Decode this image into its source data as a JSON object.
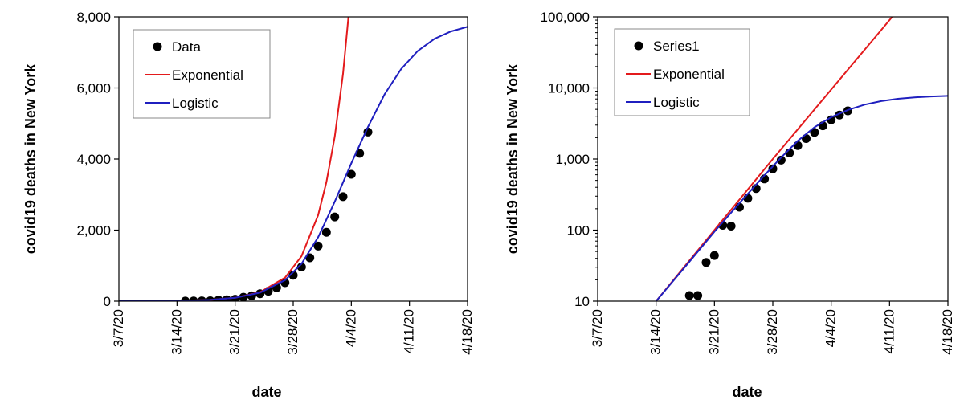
{
  "colors": {
    "exponential": "#e31a1c",
    "logistic": "#1f1fbf",
    "data": "#000000"
  },
  "chart_data": [
    {
      "type": "line",
      "yscale": "linear",
      "title": "",
      "xlabel": "date",
      "ylabel": "covid19 deaths in New York",
      "xlim": [
        "3/7/20",
        "4/18/20"
      ],
      "ylim": [
        0,
        8000
      ],
      "x_ticks": [
        "3/7/20",
        "3/14/20",
        "3/21/20",
        "3/28/20",
        "4/4/20",
        "4/11/20",
        "4/18/20"
      ],
      "y_ticks": [
        0,
        2000,
        4000,
        6000,
        8000
      ],
      "y_tick_labels": [
        "0",
        "2,000",
        "4,000",
        "6,000",
        "8,000"
      ],
      "grid": false,
      "legend": {
        "position": "top-left",
        "entries": [
          "Data",
          "Exponential",
          "Logistic"
        ]
      },
      "series": [
        {
          "name": "Data",
          "kind": "scatter",
          "x": [
            "3/15/20",
            "3/16/20",
            "3/17/20",
            "3/18/20",
            "3/19/20",
            "3/20/20",
            "3/21/20",
            "3/22/20",
            "3/23/20",
            "3/24/20",
            "3/25/20",
            "3/26/20",
            "3/27/20",
            "3/28/20",
            "3/29/20",
            "3/30/20",
            "3/31/20",
            "4/1/20",
            "4/2/20",
            "4/3/20",
            "4/4/20",
            "4/5/20",
            "4/6/20"
          ],
          "y": [
            3,
            5,
            10,
            12,
            30,
            40,
            55,
            110,
            150,
            210,
            280,
            380,
            520,
            730,
            960,
            1220,
            1550,
            1940,
            2370,
            2940,
            3570,
            4160,
            4760
          ]
        },
        {
          "name": "Exponential",
          "kind": "line",
          "x": [
            "3/14/20",
            "3/18/20",
            "3/21/20",
            "3/24/20",
            "3/27/20",
            "3/29/20",
            "3/31/20",
            "4/1/20",
            "4/2/20",
            "4/3/20",
            "4/4/20",
            "4/5/20"
          ],
          "y": [
            10,
            36,
            95,
            250,
            660,
            1265,
            2420,
            3350,
            4630,
            6400,
            8850,
            12250
          ]
        },
        {
          "name": "Logistic",
          "kind": "line",
          "x": [
            "3/7/20",
            "3/11/20",
            "3/14/20",
            "3/18/20",
            "3/21/20",
            "3/24/20",
            "3/27/20",
            "3/29/20",
            "3/31/20",
            "4/2/20",
            "4/4/20",
            "4/6/20",
            "4/8/20",
            "4/10/20",
            "4/12/20",
            "4/14/20",
            "4/16/20",
            "4/18/20"
          ],
          "y": [
            1,
            3,
            10,
            36,
            95,
            240,
            590,
            1050,
            1800,
            2800,
            3880,
            4900,
            5820,
            6530,
            7040,
            7380,
            7590,
            7720
          ]
        }
      ]
    },
    {
      "type": "line",
      "yscale": "log",
      "title": "",
      "xlabel": "date",
      "ylabel": "covid19 deaths in New York",
      "xlim": [
        "3/7/20",
        "4/18/20"
      ],
      "ylim": [
        10,
        100000
      ],
      "x_ticks": [
        "3/7/20",
        "3/14/20",
        "3/21/20",
        "3/28/20",
        "4/4/20",
        "4/11/20",
        "4/18/20"
      ],
      "y_ticks": [
        10,
        100,
        1000,
        10000,
        100000
      ],
      "y_tick_labels": [
        "10",
        "100",
        "1,000",
        "10,000",
        "100,000"
      ],
      "grid": false,
      "legend": {
        "position": "top-left",
        "entries": [
          "Series1",
          "Exponential",
          "Logistic"
        ]
      },
      "series": [
        {
          "name": "Series1",
          "kind": "scatter",
          "x": [
            "3/18/20",
            "3/19/20",
            "3/20/20",
            "3/21/20",
            "3/22/20",
            "3/23/20",
            "3/24/20",
            "3/25/20",
            "3/26/20",
            "3/27/20",
            "3/28/20",
            "3/29/20",
            "3/30/20",
            "3/31/20",
            "4/1/20",
            "4/2/20",
            "4/3/20",
            "4/4/20",
            "4/5/20",
            "4/6/20"
          ],
          "y": [
            12,
            12,
            35,
            44,
            117,
            114,
            210,
            280,
            385,
            525,
            728,
            965,
            1218,
            1550,
            1941,
            2373,
            2935,
            3565,
            4159,
            4758
          ]
        },
        {
          "name": "Exponential",
          "kind": "line",
          "x": [
            "3/14/20",
            "3/21/20",
            "3/28/20",
            "4/4/20",
            "4/11/20",
            "4/13/20"
          ],
          "y": [
            10,
            100,
            1000,
            9500,
            90000,
            175000
          ]
        },
        {
          "name": "Logistic",
          "kind": "line",
          "x": [
            "3/14/20",
            "3/18/20",
            "3/21/20",
            "3/24/20",
            "3/27/20",
            "3/29/20",
            "3/31/20",
            "4/2/20",
            "4/4/20",
            "4/6/20",
            "4/8/20",
            "4/10/20",
            "4/12/20",
            "4/14/20",
            "4/16/20",
            "4/18/20"
          ],
          "y": [
            10,
            36,
            95,
            240,
            590,
            1050,
            1800,
            2800,
            3880,
            4900,
            5820,
            6530,
            7040,
            7380,
            7590,
            7720
          ]
        }
      ]
    }
  ]
}
